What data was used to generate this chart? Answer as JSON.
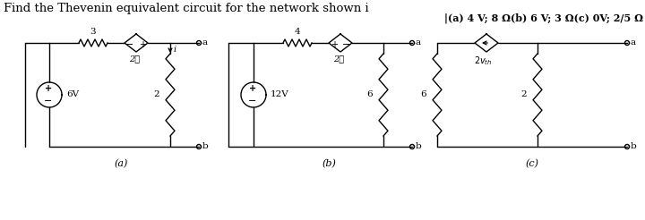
{
  "title": "Find the Thevenin equivalent circuit for the network shown i",
  "answer_text": "|(a) 4 V; 8 Ω(b) 6 V; 3 Ω(c) 0V; 2/5 Ω",
  "label_a": "(a)",
  "label_b": "(b)",
  "label_c": "(c)",
  "bg_color": "#ffffff",
  "line_color": "#000000"
}
